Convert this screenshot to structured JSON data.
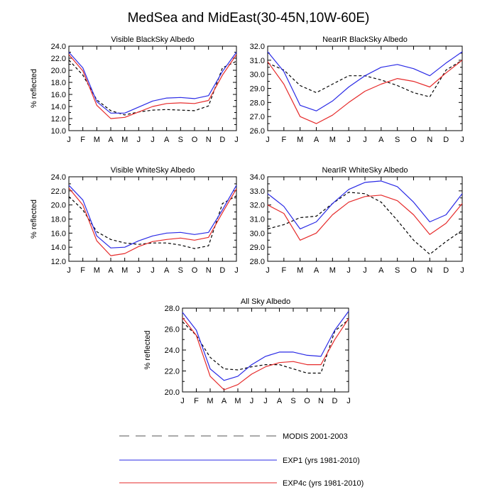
{
  "figure": {
    "title": "MedSea and MidEast(30-45N,10W-60E)"
  },
  "colors": {
    "modis": "#000000",
    "exp1": "#2a2ae6",
    "exp4c": "#e62a2a"
  },
  "legend": [
    {
      "key": "modis",
      "label": "MODIS 2001-2003",
      "dashed": true
    },
    {
      "key": "exp1",
      "label": "EXP1 (yrs 1981-2010)",
      "dashed": false
    },
    {
      "key": "exp4c",
      "label": "EXP4c (yrs 1981-2010)",
      "dashed": false
    }
  ],
  "chart_data": [
    {
      "type": "line",
      "title": "Visible BlackSky Albedo",
      "xlabel": "",
      "ylabel": "% reflected",
      "categories": [
        "J",
        "F",
        "M",
        "A",
        "M",
        "J",
        "J",
        "A",
        "S",
        "O",
        "N",
        "D",
        "J"
      ],
      "yticks": [
        "10.0",
        "12.0",
        "14.0",
        "16.0",
        "18.0",
        "20.0",
        "22.0",
        "24.0"
      ],
      "ylim": [
        10,
        24
      ],
      "series": [
        {
          "name": "MODIS 2001-2003",
          "key": "modis",
          "values": [
            21.7,
            19.2,
            15.1,
            13.3,
            12.6,
            13.1,
            13.4,
            13.5,
            13.4,
            13.3,
            14.1,
            20.4,
            21.5
          ]
        },
        {
          "name": "EXP1 (yrs 1981-2010)",
          "key": "exp1",
          "values": [
            23.0,
            20.4,
            14.8,
            12.9,
            12.9,
            13.9,
            14.9,
            15.4,
            15.5,
            15.3,
            15.8,
            19.8,
            23.0
          ]
        },
        {
          "name": "EXP4c (yrs 1981-2010)",
          "key": "exp4c",
          "values": [
            22.6,
            19.9,
            14.2,
            12.0,
            12.2,
            13.1,
            14.0,
            14.5,
            14.6,
            14.5,
            15.0,
            19.2,
            22.6
          ]
        }
      ]
    },
    {
      "type": "line",
      "title": "NearIR BlackSky Albedo",
      "xlabel": "",
      "ylabel": "",
      "categories": [
        "J",
        "F",
        "M",
        "A",
        "M",
        "J",
        "J",
        "A",
        "S",
        "O",
        "N",
        "D",
        "J"
      ],
      "yticks": [
        "26.0",
        "27.0",
        "28.0",
        "29.0",
        "30.0",
        "31.0",
        "32.0"
      ],
      "ylim": [
        26,
        32
      ],
      "series": [
        {
          "name": "MODIS 2001-2003",
          "key": "modis",
          "values": [
            30.8,
            30.3,
            29.2,
            28.7,
            29.3,
            29.9,
            29.9,
            29.6,
            29.2,
            28.7,
            28.4,
            30.3,
            31.0
          ]
        },
        {
          "name": "EXP1 (yrs 1981-2010)",
          "key": "exp1",
          "values": [
            31.6,
            30.2,
            27.8,
            27.4,
            28.1,
            29.1,
            29.9,
            30.5,
            30.7,
            30.4,
            29.9,
            30.8,
            31.6
          ]
        },
        {
          "name": "EXP4c (yrs 1981-2010)",
          "key": "exp4c",
          "values": [
            30.9,
            29.3,
            27.0,
            26.5,
            27.1,
            28.0,
            28.8,
            29.3,
            29.7,
            29.5,
            29.1,
            30.1,
            31.0
          ]
        }
      ]
    },
    {
      "type": "line",
      "title": "Visible WhiteSky Albedo",
      "xlabel": "",
      "ylabel": "% reflected",
      "categories": [
        "J",
        "F",
        "M",
        "A",
        "M",
        "J",
        "J",
        "A",
        "S",
        "O",
        "N",
        "D",
        "J"
      ],
      "yticks": [
        "12.0",
        "14.0",
        "16.0",
        "18.0",
        "20.0",
        "22.0",
        "24.0"
      ],
      "ylim": [
        12,
        24
      ],
      "series": [
        {
          "name": "MODIS 2001-2003",
          "key": "modis",
          "values": [
            21.2,
            19.3,
            16.2,
            15.1,
            14.6,
            14.4,
            14.6,
            14.6,
            14.3,
            13.8,
            14.2,
            20.2,
            21.3
          ]
        },
        {
          "name": "EXP1 (yrs 1981-2010)",
          "key": "exp1",
          "values": [
            22.8,
            20.7,
            15.6,
            13.9,
            14.0,
            14.9,
            15.6,
            16.0,
            16.1,
            15.8,
            16.1,
            19.3,
            22.8
          ]
        },
        {
          "name": "EXP4c (yrs 1981-2010)",
          "key": "exp4c",
          "values": [
            22.4,
            20.0,
            14.9,
            12.8,
            13.1,
            14.1,
            14.8,
            15.1,
            15.3,
            15.0,
            15.4,
            18.9,
            22.3
          ]
        }
      ]
    },
    {
      "type": "line",
      "title": "NearIR WhiteSky Albedo",
      "xlabel": "",
      "ylabel": "",
      "categories": [
        "J",
        "F",
        "M",
        "A",
        "M",
        "J",
        "J",
        "A",
        "S",
        "O",
        "N",
        "D",
        "J"
      ],
      "yticks": [
        "28.0",
        "29.0",
        "30.0",
        "31.0",
        "32.0",
        "33.0",
        "34.0"
      ],
      "ylim": [
        28,
        34
      ],
      "series": [
        {
          "name": "MODIS 2001-2003",
          "key": "modis",
          "values": [
            30.3,
            30.6,
            31.1,
            31.2,
            32.1,
            32.9,
            32.8,
            32.2,
            30.9,
            29.5,
            28.5,
            29.4,
            30.2
          ]
        },
        {
          "name": "EXP1 (yrs 1981-2010)",
          "key": "exp1",
          "values": [
            32.8,
            31.9,
            30.3,
            30.8,
            32.1,
            33.1,
            33.6,
            33.7,
            33.3,
            32.2,
            30.8,
            31.3,
            32.8
          ]
        },
        {
          "name": "EXP4c (yrs 1981-2010)",
          "key": "exp4c",
          "values": [
            32.0,
            31.4,
            29.5,
            30.0,
            31.3,
            32.2,
            32.6,
            32.7,
            32.3,
            31.3,
            29.9,
            30.7,
            32.1
          ]
        }
      ]
    },
    {
      "type": "line",
      "title": "All Sky Albedo",
      "xlabel": "",
      "ylabel": "% reflected",
      "categories": [
        "J",
        "F",
        "M",
        "A",
        "M",
        "J",
        "J",
        "A",
        "S",
        "O",
        "N",
        "D",
        "J"
      ],
      "yticks": [
        "20.0",
        "22.0",
        "24.0",
        "26.0",
        "28.0"
      ],
      "ylim": [
        20,
        28
      ],
      "series": [
        {
          "name": "MODIS 2001-2003",
          "key": "modis",
          "values": [
            26.7,
            25.4,
            23.3,
            22.2,
            22.1,
            22.4,
            22.6,
            22.6,
            22.2,
            21.8,
            21.8,
            25.8,
            26.9
          ]
        },
        {
          "name": "EXP1 (yrs 1981-2010)",
          "key": "exp1",
          "values": [
            27.6,
            25.9,
            22.2,
            21.1,
            21.5,
            22.6,
            23.4,
            23.8,
            23.8,
            23.5,
            23.4,
            25.9,
            27.7
          ]
        },
        {
          "name": "EXP4c (yrs 1981-2010)",
          "key": "exp4c",
          "values": [
            27.1,
            25.4,
            21.5,
            20.2,
            20.7,
            21.7,
            22.4,
            22.8,
            22.9,
            22.6,
            22.6,
            25.0,
            27.0
          ]
        }
      ]
    }
  ]
}
